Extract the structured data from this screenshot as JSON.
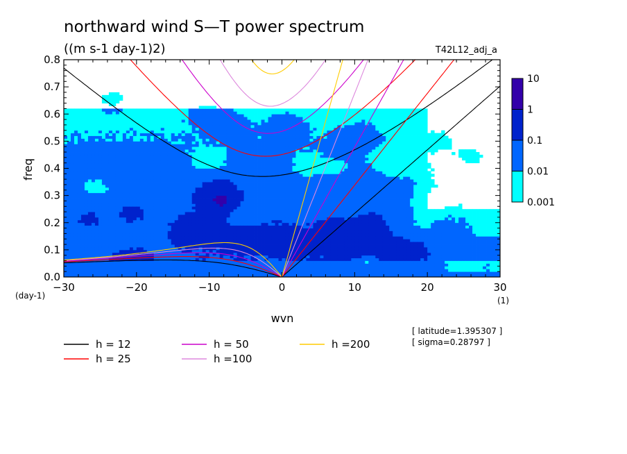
{
  "chart_data": {
    "type": "heatmap",
    "title": "northward wind S—T power spectrum",
    "units": "((m s-1 day-1)2)",
    "run_label": "T42L12_adj_a",
    "xlabel": "wvn",
    "ylabel": "freq",
    "x_unit": "(1)",
    "y_unit": "(day-1)",
    "xlim": [
      -30,
      30
    ],
    "ylim": [
      0,
      0.8
    ],
    "x_ticks": [
      -30,
      -20,
      -10,
      0,
      10,
      20,
      30
    ],
    "x_tick_labels": [
      "−30",
      "−20",
      "−10",
      "0",
      "10",
      "20",
      "30"
    ],
    "y_ticks": [
      0,
      0.1,
      0.2,
      0.3,
      0.4,
      0.5,
      0.6,
      0.7,
      0.8
    ],
    "y_tick_labels": [
      "0.0",
      "0.1",
      "0.2",
      "0.3",
      "0.4",
      "0.5",
      "0.6",
      "0.7",
      "0.8"
    ],
    "colorbar": {
      "levels": [
        0.001,
        0.01,
        0.1,
        1,
        10
      ],
      "labels": [
        "0.001",
        "0.01",
        "0.1",
        "1",
        "10"
      ],
      "colors": [
        "#00ffff",
        "#0066ff",
        "#0022cc",
        "#3300aa"
      ]
    },
    "dispersion_curves": [
      {
        "h": 12,
        "label": "h = 12",
        "color": "#000000"
      },
      {
        "h": 25,
        "label": "h = 25",
        "color": "#ff0000"
      },
      {
        "h": 50,
        "label": "h = 50",
        "color": "#cc00cc"
      },
      {
        "h": 100,
        "label": "h =100",
        "color": "#dd88dd"
      },
      {
        "h": 200,
        "label": "h =200",
        "color": "#ffcc00"
      }
    ],
    "annotations": [
      "[ latitude=1.395307 ]",
      "[ sigma=0.28797 ]"
    ]
  }
}
